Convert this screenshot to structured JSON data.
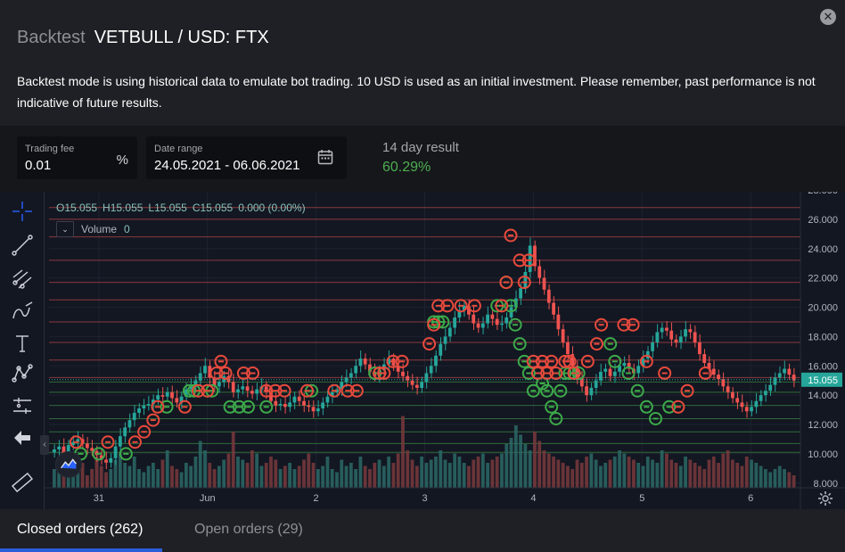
{
  "header": {
    "title_muted": "Backtest",
    "title_main": "VETBULL / USD: FTX",
    "close_icon": "close-icon",
    "description": "Backtest mode is using historical data to emulate bot trading. 10 USD is used as an initial investment. Please remember, past performance is not indicative of future results."
  },
  "controls": {
    "trading_fee": {
      "label": "Trading fee",
      "value": "0.01",
      "unit": "%"
    },
    "date_range": {
      "label": "Date range",
      "value": "24.05.2021 - 06.06.2021",
      "icon": "calendar-icon"
    },
    "result": {
      "label": "14 day result",
      "value": "60.29%",
      "color": "#4caf50"
    }
  },
  "chart": {
    "ohlc": {
      "o": "O15.055",
      "h": "H15.055",
      "l": "L15.055",
      "c": "C15.055",
      "change": "0.000 (0.00%)"
    },
    "volume": {
      "label": "Volume",
      "value": "0"
    },
    "last_price": "15.055",
    "toolbar_icons": [
      "crosshair-icon",
      "trend-line-icon",
      "fib-icon",
      "brush-icon",
      "text-icon",
      "pattern-icon",
      "measure-icon",
      "back-arrow-icon",
      "ruler-icon"
    ],
    "colors": {
      "up": "#26a69a",
      "down": "#ef5350",
      "sell_marker": "#e84a3c",
      "buy_marker": "#3daa4a"
    }
  },
  "chart_data": {
    "type": "candlestick",
    "y_ticks": [
      "28.000",
      "26.000",
      "24.000",
      "22.000",
      "20.000",
      "18.000",
      "16.000",
      "14.000",
      "12.000",
      "10.000",
      "8.000"
    ],
    "ylim": [
      7.5,
      28
    ],
    "x_ticks": [
      {
        "label": "31",
        "hour": 0
      },
      {
        "label": "Jun",
        "hour": 24
      },
      {
        "label": "2",
        "hour": 48
      },
      {
        "label": "3",
        "hour": 72
      },
      {
        "label": "4",
        "hour": 96
      },
      {
        "label": "5",
        "hour": 120
      },
      {
        "label": "6",
        "hour": 144
      }
    ],
    "x_range_hours": [
      -11,
      155
    ],
    "grid_levels_red": [
      26.8,
      26.0,
      24.8,
      23.2,
      21.7,
      20.5,
      19.0,
      17.6,
      16.4,
      15.2
    ],
    "grid_levels_green": [
      14.9,
      14.2,
      13.3,
      12.4,
      11.5,
      10.7,
      10.1
    ],
    "close_prices": [
      10.3,
      10.5,
      10.0,
      10.6,
      10.8,
      11.0,
      10.7,
      10.4,
      10.2,
      9.9,
      9.6,
      9.4,
      9.7,
      10.5,
      11.2,
      11.8,
      12.3,
      12.8,
      13.1,
      13.3,
      13.4,
      13.7,
      14.0,
      13.9,
      14.2,
      13.8,
      13.5,
      13.9,
      14.4,
      14.6,
      15.0,
      15.5,
      16.0,
      15.2,
      14.6,
      14.9,
      15.3,
      14.9,
      14.2,
      14.4,
      14.6,
      14.3,
      14.1,
      14.4,
      14.6,
      14.2,
      13.6,
      13.3,
      13.4,
      13.2,
      13.5,
      13.9,
      13.6,
      13.3,
      13.2,
      12.9,
      13.1,
      13.5,
      13.9,
      14.2,
      14.4,
      14.9,
      15.2,
      15.5,
      16.0,
      16.5,
      16.1,
      15.6,
      15.3,
      15.7,
      16.1,
      16.5,
      16.0,
      15.6,
      15.3,
      15.0,
      14.7,
      14.5,
      14.9,
      15.5,
      16.0,
      16.7,
      17.5,
      18.0,
      18.6,
      19.3,
      19.8,
      20.1,
      19.5,
      18.9,
      18.6,
      18.9,
      19.5,
      19.2,
      18.8,
      18.9,
      19.3,
      20.0,
      20.6,
      21.3,
      22.4,
      24.2,
      22.8,
      22.0,
      21.2,
      20.3,
      19.5,
      18.5,
      17.6,
      16.8,
      16.0,
      15.2,
      14.6,
      14.0,
      14.5,
      15.0,
      15.6,
      15.8,
      15.3,
      15.6,
      16.0,
      16.2,
      15.8,
      15.5,
      16.0,
      16.5,
      17.0,
      17.6,
      18.3,
      18.6,
      18.4,
      17.8,
      17.6,
      18.0,
      18.5,
      18.3,
      17.6,
      16.8,
      16.2,
      15.8,
      15.4,
      15.1,
      14.6,
      14.2,
      13.8,
      13.5,
      13.2,
      12.9,
      13.2,
      13.6,
      14.0,
      14.3,
      14.7,
      15.2,
      15.5,
      15.8,
      15.4,
      15.0
    ],
    "volumes": [
      0.3,
      0.25,
      0.2,
      0.35,
      0.3,
      0.25,
      0.4,
      0.2,
      0.3,
      0.5,
      0.35,
      0.25,
      0.3,
      0.45,
      0.55,
      0.4,
      0.35,
      0.5,
      0.3,
      0.25,
      0.35,
      0.4,
      0.3,
      0.45,
      0.6,
      0.35,
      0.3,
      0.25,
      0.4,
      0.35,
      0.5,
      0.75,
      0.6,
      0.4,
      0.3,
      0.35,
      0.45,
      0.55,
      0.9,
      0.5,
      0.45,
      0.4,
      0.6,
      0.55,
      0.35,
      0.4,
      0.5,
      0.45,
      0.3,
      0.35,
      0.4,
      0.3,
      0.35,
      0.45,
      0.55,
      0.4,
      0.3,
      0.35,
      0.5,
      0.3,
      0.25,
      0.45,
      0.35,
      0.4,
      0.3,
      0.5,
      0.35,
      0.3,
      0.4,
      0.45,
      0.35,
      0.5,
      0.4,
      0.55,
      1.15,
      0.6,
      0.45,
      0.35,
      0.5,
      0.4,
      0.45,
      0.5,
      0.6,
      0.45,
      0.4,
      0.55,
      0.5,
      0.4,
      0.35,
      0.45,
      0.5,
      0.55,
      0.4,
      0.45,
      0.5,
      0.55,
      0.7,
      0.8,
      1.0,
      0.85,
      0.7,
      0.6,
      0.9,
      0.75,
      0.6,
      0.55,
      0.5,
      0.45,
      0.4,
      0.35,
      0.3,
      0.45,
      0.4,
      0.5,
      0.55,
      0.45,
      0.35,
      0.4,
      0.45,
      0.5,
      0.6,
      0.55,
      0.5,
      0.45,
      0.4,
      0.35,
      0.5,
      0.45,
      0.4,
      0.6,
      0.55,
      0.45,
      0.4,
      0.35,
      0.5,
      0.45,
      0.4,
      0.35,
      0.3,
      0.45,
      0.5,
      0.4,
      0.55,
      0.6,
      0.45,
      0.4,
      0.35,
      0.5,
      0.45,
      0.4,
      0.35,
      0.3,
      0.25,
      0.3,
      0.35,
      0.3,
      0.25,
      0.2
    ],
    "sell_markers": [
      [
        -5,
        10.8
      ],
      [
        2,
        10.8
      ],
      [
        8,
        10.8
      ],
      [
        10,
        11.5
      ],
      [
        12,
        12.3
      ],
      [
        13,
        13.2
      ],
      [
        19,
        13.2
      ],
      [
        22,
        14.3
      ],
      [
        24,
        14.3
      ],
      [
        26,
        15.5
      ],
      [
        27,
        16.3
      ],
      [
        28,
        15.5
      ],
      [
        32,
        15.5
      ],
      [
        34,
        15.5
      ],
      [
        37,
        14.3
      ],
      [
        39,
        14.3
      ],
      [
        41,
        14.3
      ],
      [
        46,
        14.3
      ],
      [
        52,
        14.3
      ],
      [
        55,
        14.3
      ],
      [
        57,
        14.3
      ],
      [
        62,
        15.5
      ],
      [
        63,
        15.5
      ],
      [
        65,
        16.3
      ],
      [
        67,
        16.3
      ],
      [
        73,
        17.5
      ],
      [
        74,
        18.8
      ],
      [
        75,
        20.1
      ],
      [
        77,
        20.1
      ],
      [
        80,
        20.1
      ],
      [
        83,
        20.1
      ],
      [
        89,
        20.1
      ],
      [
        90,
        21.7
      ],
      [
        91,
        24.9
      ],
      [
        93,
        23.2
      ],
      [
        94,
        21.7
      ],
      [
        95,
        23.2
      ],
      [
        96,
        16.3
      ],
      [
        97,
        15.5
      ],
      [
        98,
        16.3
      ],
      [
        99,
        15.5
      ],
      [
        100,
        16.3
      ],
      [
        101,
        15.5
      ],
      [
        103,
        16.3
      ],
      [
        104,
        16.3
      ],
      [
        105,
        15.5
      ],
      [
        108,
        16.3
      ],
      [
        110,
        17.5
      ],
      [
        111,
        18.8
      ],
      [
        116,
        18.8
      ],
      [
        118,
        18.8
      ],
      [
        121,
        16.3
      ],
      [
        125,
        15.5
      ],
      [
        128,
        13.2
      ],
      [
        130,
        14.3
      ],
      [
        134,
        15.5
      ]
    ],
    "buy_markers": [
      [
        -4,
        10.0
      ],
      [
        0,
        10.0
      ],
      [
        6,
        10.0
      ],
      [
        15,
        13.2
      ],
      [
        20,
        14.3
      ],
      [
        21,
        14.3
      ],
      [
        24,
        14.3
      ],
      [
        25,
        14.3
      ],
      [
        29,
        13.2
      ],
      [
        31,
        13.2
      ],
      [
        33,
        13.2
      ],
      [
        37,
        13.2
      ],
      [
        47,
        14.3
      ],
      [
        61,
        15.5
      ],
      [
        74,
        19.0
      ],
      [
        75,
        19.0
      ],
      [
        76,
        19.0
      ],
      [
        88,
        20.1
      ],
      [
        90,
        21.7
      ],
      [
        91,
        20.1
      ],
      [
        92,
        18.8
      ],
      [
        93,
        17.5
      ],
      [
        94,
        16.3
      ],
      [
        95,
        15.5
      ],
      [
        96,
        14.3
      ],
      [
        97,
        15.5
      ],
      [
        98,
        14.8
      ],
      [
        99,
        14.3
      ],
      [
        100,
        13.2
      ],
      [
        101,
        12.4
      ],
      [
        102,
        14.3
      ],
      [
        103,
        15.5
      ],
      [
        104,
        15.5
      ],
      [
        106,
        15.5
      ],
      [
        113,
        17.5
      ],
      [
        114,
        16.3
      ],
      [
        117,
        15.5
      ],
      [
        119,
        14.3
      ],
      [
        121,
        13.2
      ],
      [
        123,
        12.4
      ],
      [
        126,
        13.2
      ]
    ]
  }
}
